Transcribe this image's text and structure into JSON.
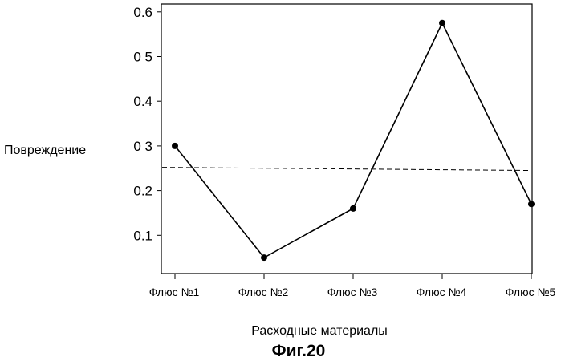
{
  "chart_data": {
    "type": "line",
    "categories": [
      "Флюс №1",
      "Флюс №2",
      "Флюс №3",
      "Флюс №4",
      "Флюс №5"
    ],
    "series": [
      {
        "values": [
          0.3,
          0.05,
          0.16,
          0.575,
          0.17
        ]
      }
    ],
    "reference_line": {
      "style": "dashed",
      "y_start": 0.252,
      "y_end": 0.245
    },
    "xlabel": "Расходные материалы",
    "ylabel": "Повреждение",
    "yticks": [
      0.1,
      0.2,
      0.3,
      0.4,
      0.5,
      0.6
    ],
    "ytick_labels": [
      "0.1",
      "0.2",
      "0 3",
      "0.4",
      "0 5",
      "0.6"
    ],
    "ylim": [
      0.0,
      0.61
    ],
    "grid": false,
    "caption": "Фиг.20"
  }
}
